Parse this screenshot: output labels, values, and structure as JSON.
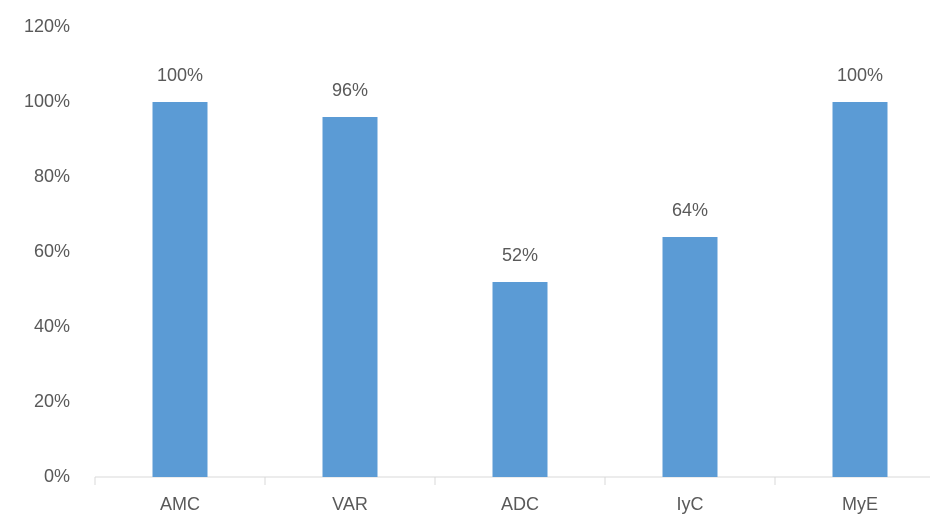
{
  "chart_data": {
    "type": "bar",
    "categories": [
      "AMC",
      "VAR",
      "ADC",
      "IyC",
      "MyE"
    ],
    "values": [
      100,
      96,
      52,
      64,
      100
    ],
    "value_labels": [
      "100%",
      "96%",
      "52%",
      "64%",
      "100%"
    ],
    "color": "#5b9bd5",
    "ylim": [
      0,
      120
    ],
    "yticks": [
      {
        "value": 0,
        "label": "0%"
      },
      {
        "value": 20,
        "label": "20%"
      },
      {
        "value": 40,
        "label": "40%"
      },
      {
        "value": 60,
        "label": "60%"
      },
      {
        "value": 80,
        "label": "80%"
      },
      {
        "value": 100,
        "label": "100%"
      },
      {
        "value": 120,
        "label": "120%"
      }
    ],
    "grid": false
  }
}
